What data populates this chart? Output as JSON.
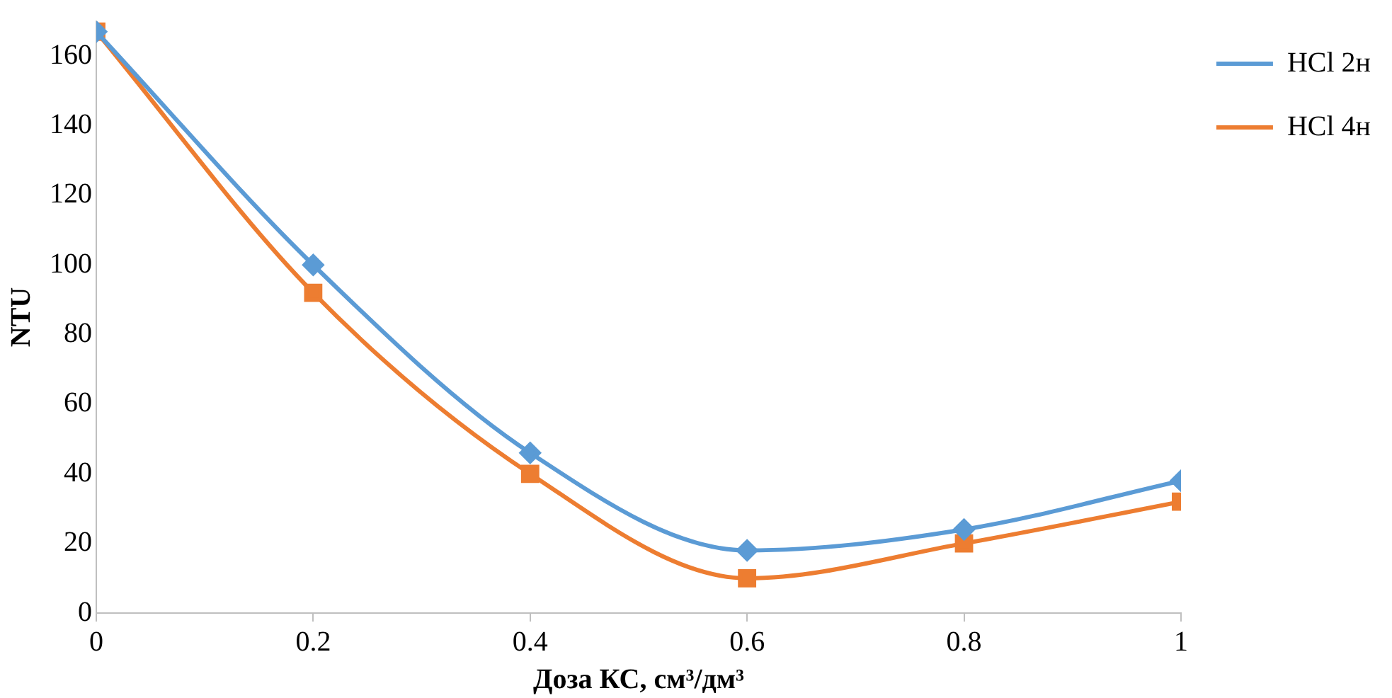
{
  "chart_data": {
    "type": "line",
    "xlabel": "Доза КС, см³/дм³",
    "ylabel": "NTU",
    "x": [
      0,
      0.2,
      0.4,
      0.6,
      0.8,
      1
    ],
    "series": [
      {
        "name": "HCl 2н",
        "color": "#5b9bd5",
        "marker": "diamond",
        "values": [
          167,
          100,
          46,
          18,
          24,
          38
        ]
      },
      {
        "name": "HCl 4н",
        "color": "#ed7d31",
        "marker": "square",
        "values": [
          167,
          92,
          40,
          10,
          20,
          32
        ]
      }
    ],
    "xlim": [
      0,
      1
    ],
    "xticks": [
      0,
      0.2,
      0.4,
      0.6,
      0.8,
      1
    ],
    "ylim": [
      0,
      170
    ],
    "yticks": [
      0,
      20,
      40,
      60,
      80,
      100,
      120,
      140,
      160
    ],
    "grid": false,
    "legend": "top right",
    "line_style": "solid"
  }
}
